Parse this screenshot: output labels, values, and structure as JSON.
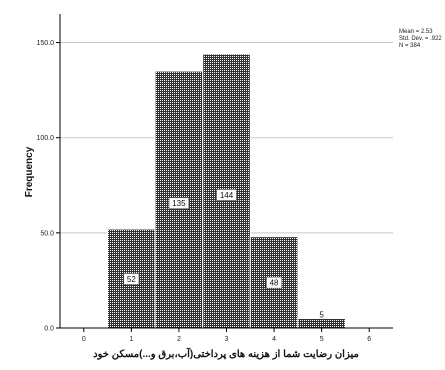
{
  "chart_data": {
    "type": "bar",
    "title": "",
    "xlabel": "میزان رضایت شما از هزینه های پرداختی(آب،برق و...)مسکن خود",
    "ylabel": "Frequency",
    "x_ticks": [
      "0",
      "1",
      "2",
      "3",
      "4",
      "5",
      "6"
    ],
    "y_ticks": [
      "0.0",
      "50.0",
      "100.0",
      "150.0"
    ],
    "xlim": [
      -0.5,
      6.5
    ],
    "ylim": [
      0,
      165
    ],
    "grid": true,
    "bars": [
      {
        "x": 1,
        "value": 52,
        "label": "52"
      },
      {
        "x": 2,
        "value": 135,
        "label": "135"
      },
      {
        "x": 3,
        "value": 144,
        "label": "144"
      },
      {
        "x": 4,
        "value": 48,
        "label": "48"
      },
      {
        "x": 5,
        "value": 5,
        "label": "5"
      }
    ],
    "stats": [
      "Mean = 2.53",
      "Std. Dev. = .922",
      "N = 384"
    ],
    "colors": {
      "bar_fill": "#3a3a3a",
      "bar_pattern": "#ffffff",
      "grid": "#c8c8c8",
      "axis": "#000000"
    }
  }
}
